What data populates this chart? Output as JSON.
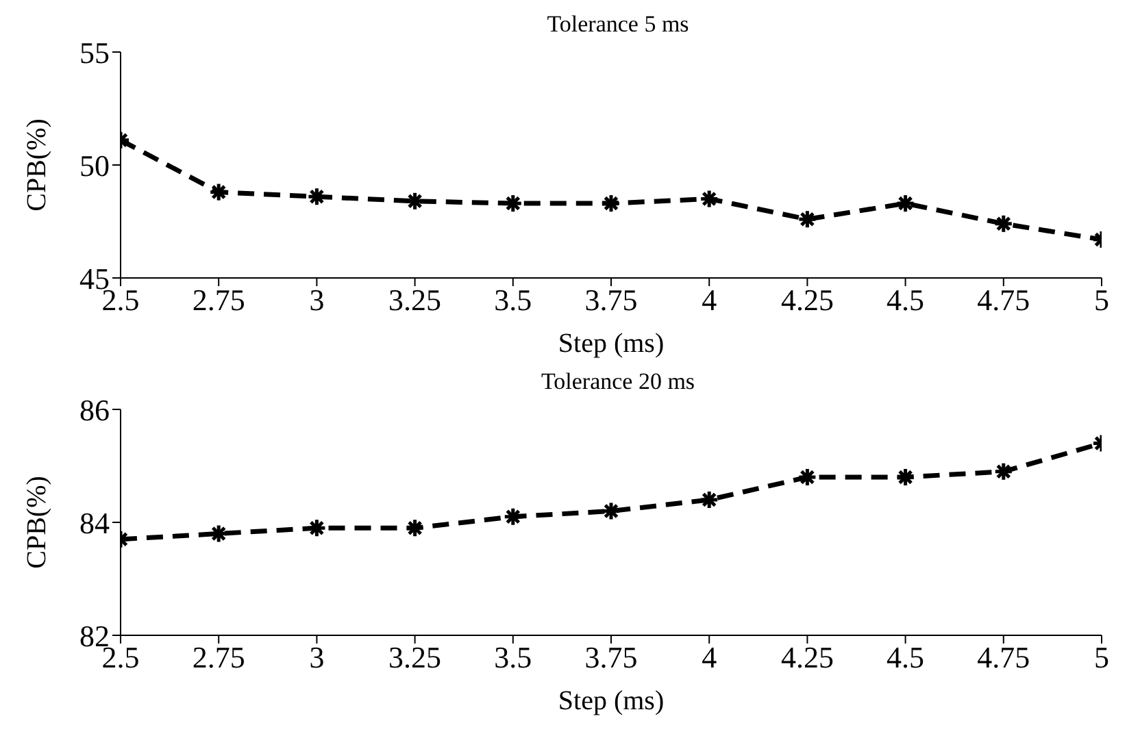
{
  "chart_data": [
    {
      "type": "line",
      "title": "Tolerance 5 ms",
      "xlabel": "Step (ms)",
      "ylabel": "CPB(%)",
      "x": [
        2.5,
        2.75,
        3,
        3.25,
        3.5,
        3.75,
        4,
        4.25,
        4.5,
        4.75,
        5
      ],
      "series": [
        {
          "color": "#000000",
          "values": [
            51.1,
            48.8,
            48.6,
            48.4,
            48.3,
            48.3,
            48.5,
            47.6,
            48.3,
            47.4,
            46.7
          ]
        }
      ],
      "xlim": [
        2.5,
        5
      ],
      "xticks": [
        2.5,
        2.75,
        3,
        3.25,
        3.5,
        3.75,
        4,
        4.25,
        4.5,
        4.75,
        5
      ],
      "ylim": [
        45,
        55
      ],
      "yticks": [
        45,
        50,
        55
      ],
      "grid": false,
      "legend": false,
      "marker": "cross",
      "line_style": "dashed"
    },
    {
      "type": "line",
      "title": "Tolerance 20 ms",
      "xlabel": "Step (ms)",
      "ylabel": "CPB(%)",
      "x": [
        2.5,
        2.75,
        3,
        3.25,
        3.5,
        3.75,
        4,
        4.25,
        4.5,
        4.75,
        5
      ],
      "series": [
        {
          "color": "#000000",
          "values": [
            83.7,
            83.8,
            83.9,
            83.9,
            84.1,
            84.2,
            84.4,
            84.8,
            84.8,
            84.9,
            85.4
          ]
        }
      ],
      "xlim": [
        2.5,
        5
      ],
      "xticks": [
        2.5,
        2.75,
        3,
        3.25,
        3.5,
        3.75,
        4,
        4.25,
        4.5,
        4.75,
        5
      ],
      "ylim": [
        82,
        86
      ],
      "yticks": [
        82,
        84,
        86
      ],
      "grid": false,
      "legend": false,
      "marker": "cross",
      "line_style": "dashed"
    }
  ]
}
